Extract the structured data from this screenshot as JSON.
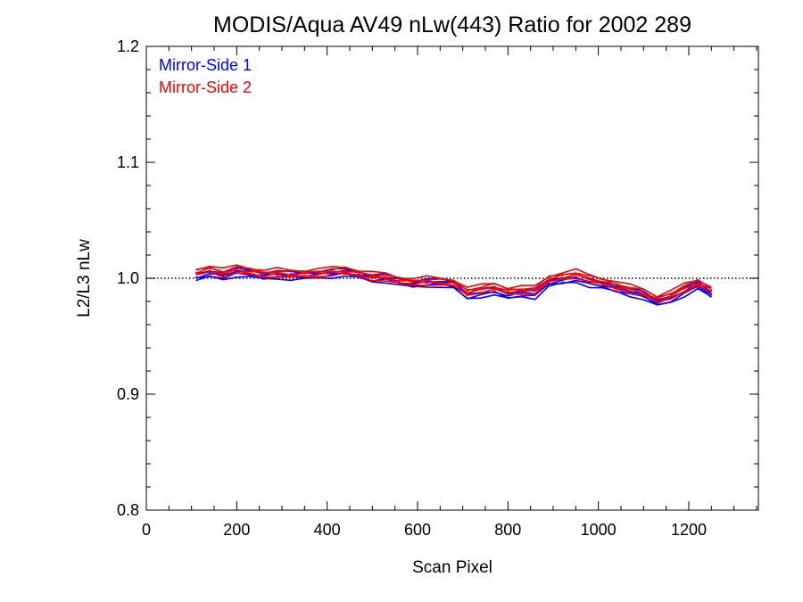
{
  "chart_data": {
    "type": "line",
    "title": "MODIS/Aqua AV49 nLw(443) Ratio for 2002 289",
    "xlabel": "Scan Pixel",
    "ylabel": "L2/L3 nLw",
    "xlim": [
      0,
      1354
    ],
    "ylim": [
      0.8,
      1.2
    ],
    "xticks": [
      0,
      200,
      400,
      600,
      800,
      1000,
      1200
    ],
    "xtick_labels": [
      "0",
      "200",
      "400",
      "600",
      "800",
      "1000",
      "1200"
    ],
    "yticks": [
      0.8,
      0.9,
      1.0,
      1.1,
      1.2
    ],
    "ytick_labels": [
      "0.8",
      "0.9",
      "1.0",
      "1.1",
      "1.2"
    ],
    "reference_line": {
      "y": 1.0,
      "style": "dotted"
    },
    "legend_position": "top-left",
    "x": [
      110,
      140,
      170,
      200,
      230,
      260,
      290,
      320,
      350,
      380,
      410,
      440,
      470,
      500,
      530,
      560,
      590,
      620,
      650,
      680,
      710,
      740,
      770,
      800,
      830,
      860,
      890,
      920,
      950,
      980,
      1010,
      1040,
      1070,
      1100,
      1130,
      1160,
      1190,
      1220,
      1250
    ],
    "series": [
      {
        "name": "Mirror-Side 1",
        "color": "#0000ff",
        "values": [
          1.001,
          1.004,
          1.002,
          1.005,
          1.004,
          1.002,
          1.003,
          1.002,
          1.002,
          1.003,
          1.004,
          1.005,
          1.003,
          1.0,
          1.0,
          0.997,
          0.995,
          0.996,
          0.996,
          0.994,
          0.985,
          0.987,
          0.989,
          0.985,
          0.987,
          0.986,
          0.996,
          0.998,
          1.0,
          0.996,
          0.994,
          0.991,
          0.988,
          0.985,
          0.979,
          0.982,
          0.988,
          0.994,
          0.986
        ]
      },
      {
        "name": "Mirror-Side 2",
        "color": "#ff0000",
        "values": [
          1.005,
          1.008,
          1.005,
          1.008,
          1.006,
          1.004,
          1.005,
          1.004,
          1.004,
          1.005,
          1.006,
          1.007,
          1.004,
          1.002,
          1.001,
          0.998,
          0.997,
          0.998,
          0.997,
          0.996,
          0.989,
          0.991,
          0.993,
          0.989,
          0.99,
          0.99,
          0.999,
          1.002,
          1.004,
          1.0,
          0.997,
          0.994,
          0.991,
          0.988,
          0.982,
          0.986,
          0.992,
          0.996,
          0.99
        ]
      }
    ]
  }
}
